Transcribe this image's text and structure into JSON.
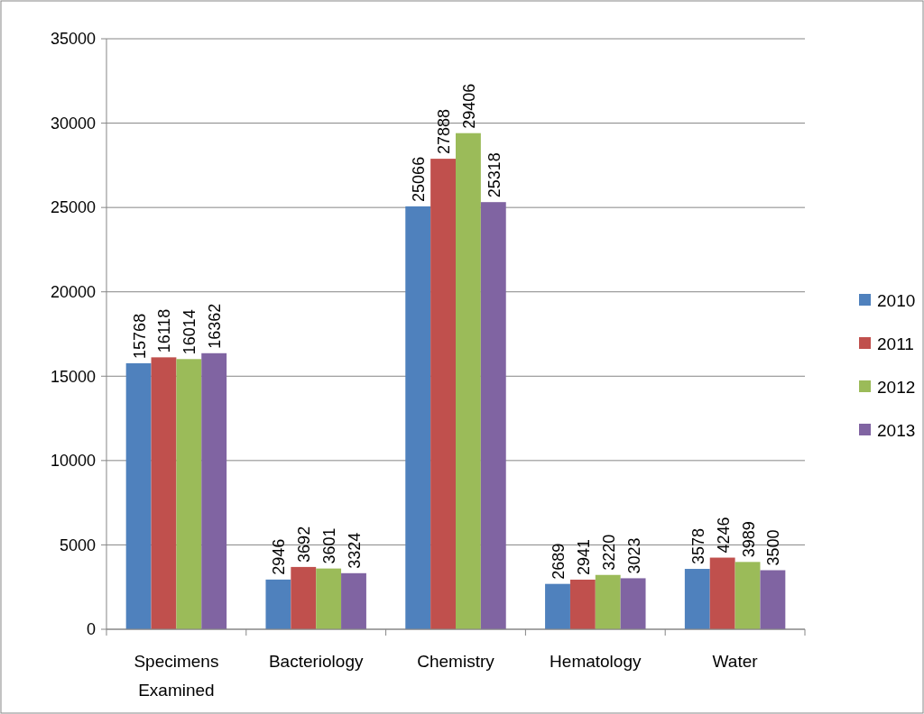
{
  "chart_data": {
    "type": "bar",
    "categories": [
      "Specimens Examined",
      "Bacteriology",
      "Chemistry",
      "Hematology",
      "Water"
    ],
    "series": [
      {
        "name": "2010",
        "color": "#4f81bd",
        "values": [
          15768,
          2946,
          25066,
          2689,
          3578
        ]
      },
      {
        "name": "2011",
        "color": "#c0504d",
        "values": [
          16118,
          3692,
          27888,
          2941,
          4246
        ]
      },
      {
        "name": "2012",
        "color": "#9bbb59",
        "values": [
          16014,
          3601,
          29406,
          3220,
          3989
        ]
      },
      {
        "name": "2013",
        "color": "#8064a2",
        "values": [
          16362,
          3324,
          25318,
          3023,
          3500
        ]
      }
    ],
    "ylim": [
      0,
      35000
    ],
    "yticks": [
      0,
      5000,
      10000,
      15000,
      20000,
      25000,
      30000,
      35000
    ],
    "grid": "y",
    "legend": "right",
    "data_labels": true
  }
}
